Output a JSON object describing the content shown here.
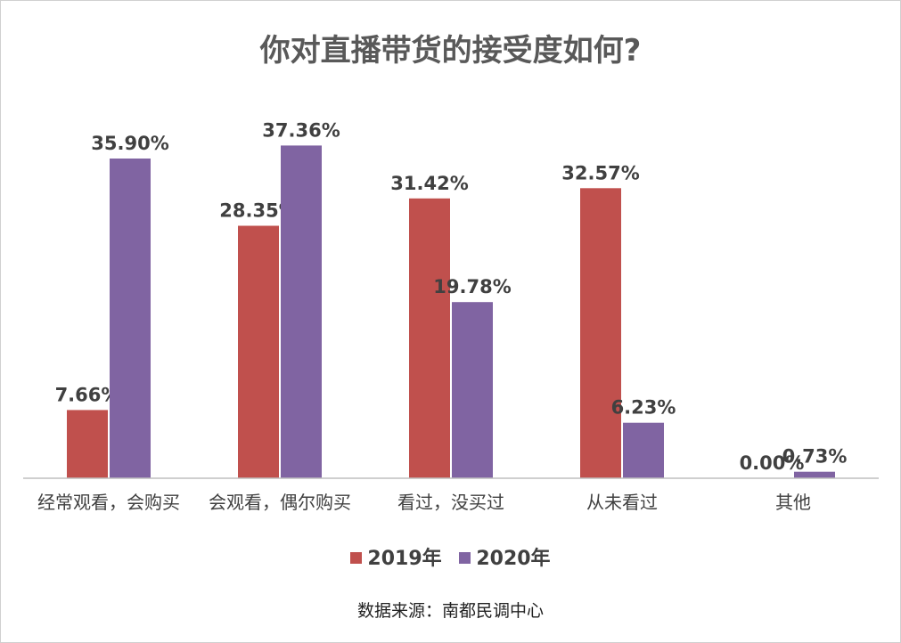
{
  "colors": {
    "2019年": "#c0504d",
    "2020年": "#8064a2",
    "axis": "#bfbfbf"
  },
  "chart_data": {
    "type": "bar",
    "title": "你对直播带货的接受度如何?",
    "categories": [
      "经常观看，会购买",
      "会观看，偶尔购买",
      "看过，没买过",
      "从未看过",
      "其他"
    ],
    "series": [
      {
        "name": "2019年",
        "values": [
          7.66,
          28.35,
          31.42,
          32.57,
          0.0
        ],
        "labels": [
          "7.66%",
          "28.35%",
          "31.42%",
          "32.57%",
          "0.00%"
        ]
      },
      {
        "name": "2020年",
        "values": [
          35.9,
          37.36,
          19.78,
          6.23,
          0.73
        ],
        "labels": [
          "35.90%",
          "37.36%",
          "19.78%",
          "6.23%",
          "0.73%"
        ]
      }
    ],
    "ylim": [
      0,
      40
    ],
    "grid": false,
    "legend": "bottom",
    "source": "数据来源：南都民调中心"
  }
}
